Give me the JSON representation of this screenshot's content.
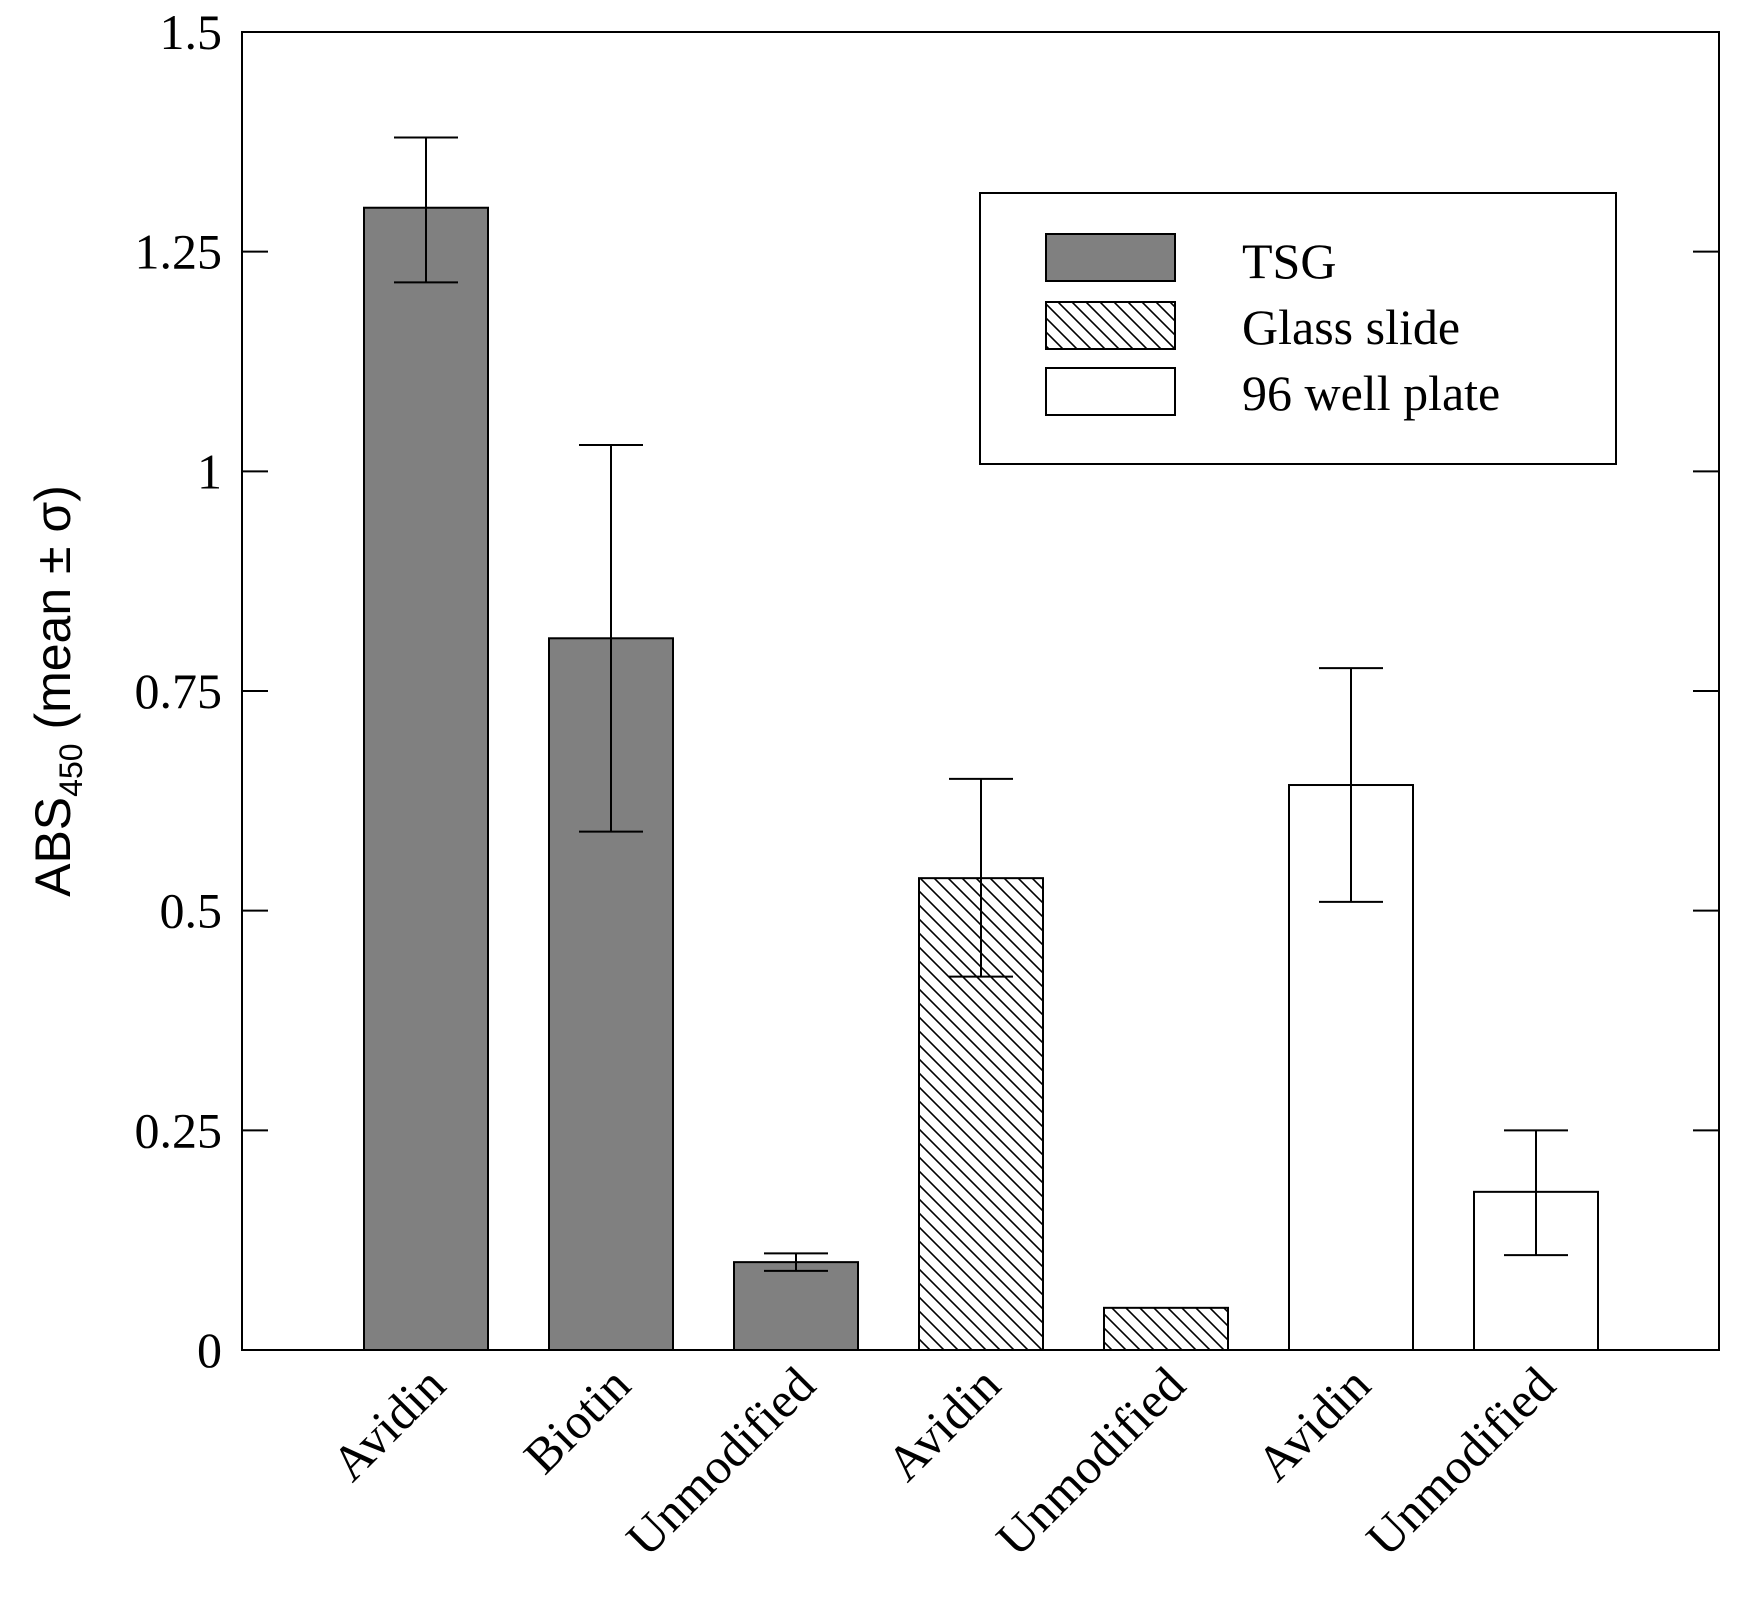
{
  "chart_data": {
    "type": "bar",
    "ylabel_main": "ABS",
    "ylabel_sub": "450",
    "ylabel_rest": " (mean ± σ)",
    "ylim": [
      0,
      1.5
    ],
    "yticks": [
      {
        "value": 0,
        "label": "0"
      },
      {
        "value": 0.25,
        "label": "0.25"
      },
      {
        "value": 0.5,
        "label": "0.5"
      },
      {
        "value": 0.75,
        "label": "0.75"
      },
      {
        "value": 1,
        "label": "1"
      },
      {
        "value": 1.25,
        "label": "1.25"
      },
      {
        "value": 1.5,
        "label": "1.5"
      }
    ],
    "series": [
      {
        "name": "TSG",
        "style": "solid",
        "color": "#808080"
      },
      {
        "name": "Glass slide",
        "style": "hatch",
        "color": "#ffffff"
      },
      {
        "name": "96 well plate",
        "style": "open",
        "color": "#ffffff"
      }
    ],
    "bars": [
      {
        "category": "Avidin",
        "series": 0,
        "value": 1.3,
        "err_low": 1.215,
        "err_high": 1.38
      },
      {
        "category": "Biotin",
        "series": 0,
        "value": 0.81,
        "err_low": 0.59,
        "err_high": 1.03
      },
      {
        "category": "Unmodified",
        "series": 0,
        "value": 0.1,
        "err_low": 0.09,
        "err_high": 0.11
      },
      {
        "category": "Avidin",
        "series": 1,
        "value": 0.537,
        "err_low": 0.425,
        "err_high": 0.65
      },
      {
        "category": "Unmodified",
        "series": 1,
        "value": 0.048,
        "err_low": null,
        "err_high": null
      },
      {
        "category": "Avidin",
        "series": 2,
        "value": 0.643,
        "err_low": 0.51,
        "err_high": 0.776
      },
      {
        "category": "Unmodified",
        "series": 2,
        "value": 0.18,
        "err_low": 0.108,
        "err_high": 0.25
      }
    ],
    "legend_position": "top-right"
  }
}
